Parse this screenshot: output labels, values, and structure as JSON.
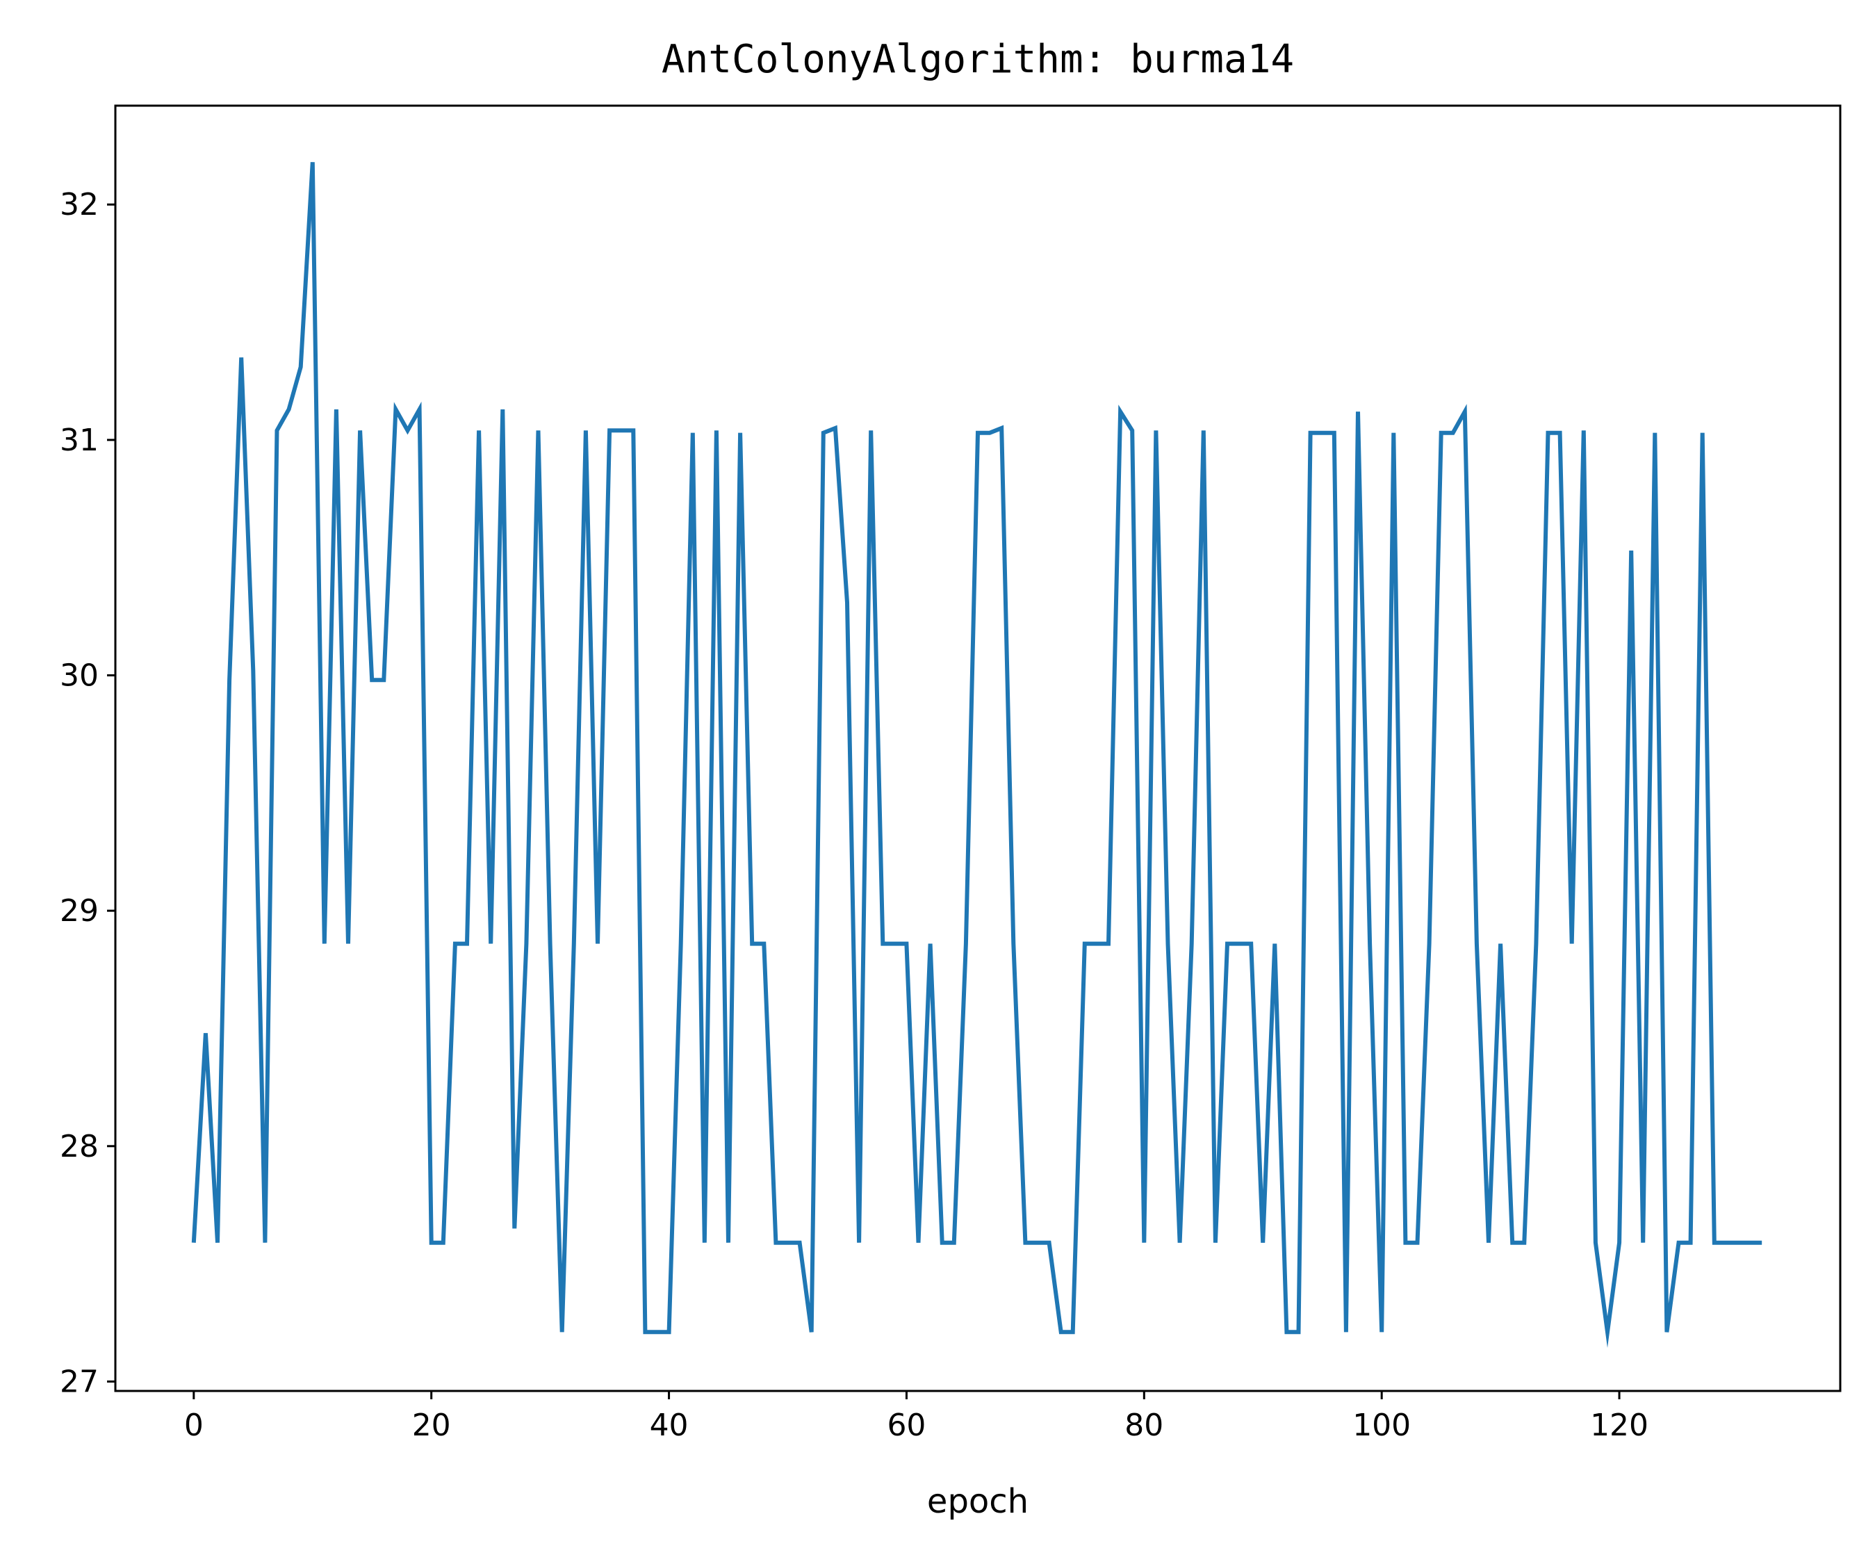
{
  "chart_data": {
    "type": "line",
    "title": "AntColonyAlgorithm: burma14",
    "xlabel": "epoch",
    "ylabel": "",
    "xlim": [
      -6.6,
      138.6
    ],
    "ylim": [
      26.96,
      32.42
    ],
    "xticks": [
      0,
      20,
      40,
      60,
      80,
      100,
      120
    ],
    "yticks": [
      27,
      28,
      29,
      30,
      31,
      32
    ],
    "grid": false,
    "series": [
      {
        "color": "#1f77b4",
        "x": [
          0,
          1,
          2,
          3,
          4,
          5,
          6,
          7,
          8,
          9,
          10,
          11,
          12,
          13,
          14,
          15,
          16,
          17,
          18,
          19,
          20,
          21,
          22,
          23,
          24,
          25,
          26,
          27,
          28,
          29,
          30,
          31,
          32,
          33,
          34,
          35,
          36,
          37,
          38,
          39,
          40,
          41,
          42,
          43,
          44,
          45,
          46,
          47,
          48,
          49,
          50,
          51,
          52,
          53,
          54,
          55,
          56,
          57,
          58,
          59,
          60,
          61,
          62,
          63,
          64,
          65,
          66,
          67,
          68,
          69,
          70,
          71,
          72,
          73,
          74,
          75,
          76,
          77,
          78,
          79,
          80,
          81,
          82,
          83,
          84,
          85,
          86,
          87,
          88,
          89,
          90,
          91,
          92,
          93,
          94,
          95,
          96,
          97,
          98,
          99,
          100,
          101,
          102,
          103,
          104,
          105,
          106,
          107,
          108,
          109,
          110,
          111,
          112,
          113,
          114,
          115,
          116,
          117,
          118,
          119,
          120,
          121,
          122,
          123,
          124,
          125,
          126,
          127,
          128,
          129,
          130,
          131,
          132
        ],
        "values": [
          27.59,
          28.48,
          27.59,
          29.98,
          31.35,
          30.02,
          27.59,
          31.04,
          31.13,
          31.31,
          32.18,
          28.86,
          31.13,
          28.86,
          31.04,
          29.98,
          29.98,
          31.13,
          31.04,
          31.13,
          27.59,
          27.59,
          28.86,
          28.86,
          31.04,
          28.86,
          31.13,
          27.65,
          28.86,
          31.04,
          28.86,
          27.21,
          28.86,
          31.04,
          28.86,
          31.04,
          31.04,
          31.04,
          27.21,
          27.21,
          27.21,
          28.86,
          31.03,
          27.59,
          31.04,
          27.59,
          31.03,
          28.86,
          28.86,
          27.59,
          27.59,
          27.59,
          27.21,
          31.03,
          31.05,
          30.31,
          27.59,
          31.04,
          28.86,
          28.86,
          28.86,
          27.59,
          28.86,
          27.59,
          27.59,
          28.86,
          31.03,
          31.03,
          31.05,
          28.86,
          27.59,
          27.59,
          27.59,
          27.21,
          27.21,
          28.86,
          28.86,
          28.86,
          31.12,
          31.04,
          27.59,
          31.04,
          28.86,
          27.59,
          28.86,
          31.04,
          27.59,
          28.86,
          28.86,
          28.86,
          27.59,
          28.86,
          27.21,
          27.21,
          31.03,
          31.03,
          31.03,
          27.21,
          31.12,
          28.86,
          27.21,
          31.03,
          27.59,
          27.59,
          28.86,
          31.03,
          31.03,
          31.12,
          28.86,
          27.59,
          28.86,
          27.59,
          27.59,
          28.86,
          31.03,
          31.03,
          28.86,
          31.04,
          27.59,
          27.21,
          27.59,
          30.53,
          27.59,
          31.03,
          27.21,
          27.59,
          27.59,
          31.03,
          27.59,
          27.59,
          27.59,
          27.59,
          27.59
        ]
      }
    ]
  }
}
